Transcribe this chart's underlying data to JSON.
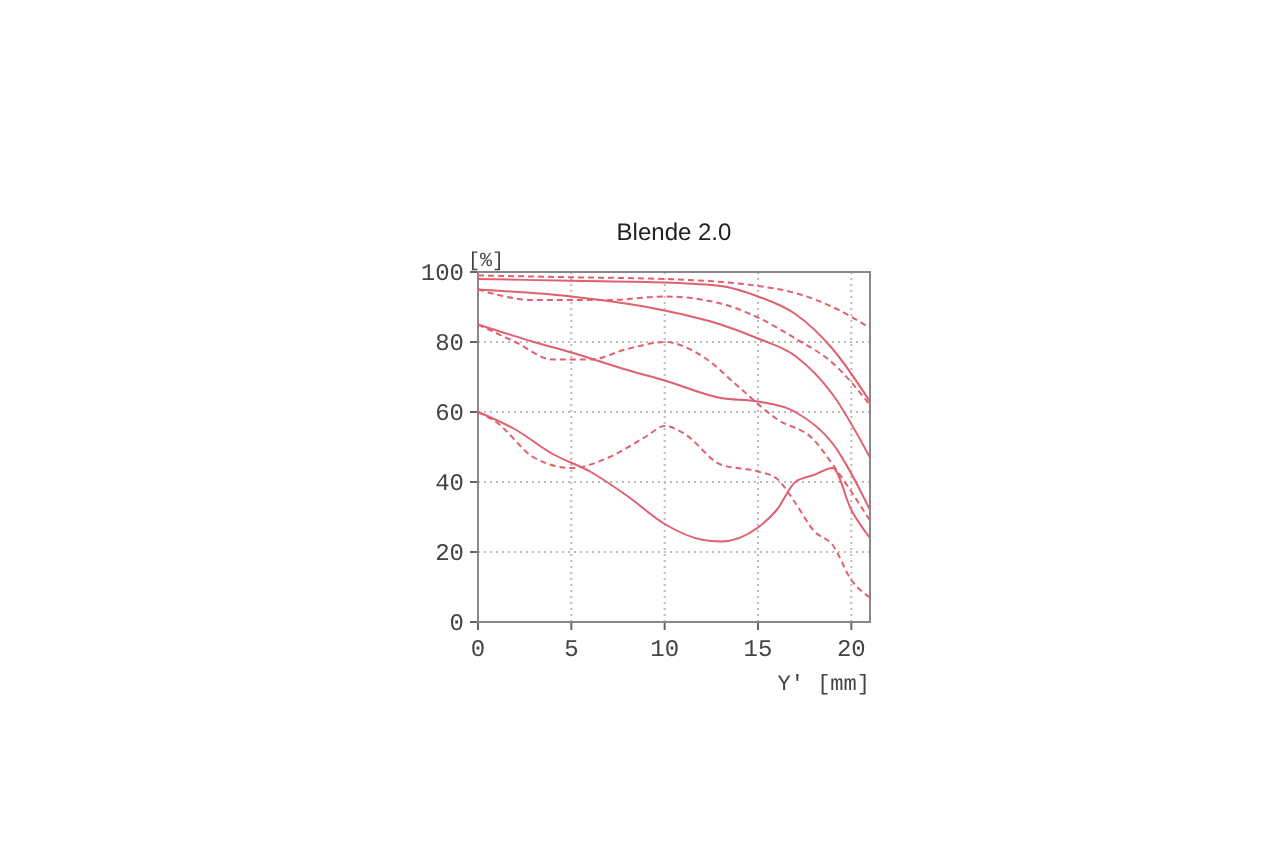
{
  "chart_data": {
    "type": "line",
    "title": "Blende 2.0",
    "xlabel": "Y' [mm]",
    "ylabel": "[%]",
    "xlim": [
      0,
      21
    ],
    "ylim": [
      0,
      100
    ],
    "xticks": [
      0,
      5,
      10,
      15,
      20
    ],
    "yticks": [
      0,
      20,
      40,
      60,
      80,
      100
    ],
    "grid": true,
    "marker": "none",
    "series": [
      {
        "color": "#e06070",
        "line_style": "solid",
        "x": [
          0,
          5,
          10,
          13,
          15,
          17,
          19,
          21
        ],
        "values": [
          98,
          97.5,
          97,
          96,
          93,
          88,
          78,
          63
        ]
      },
      {
        "color": "#e06070",
        "line_style": "dashed",
        "x": [
          0,
          5,
          10,
          15,
          17,
          19,
          21
        ],
        "values": [
          99,
          98.5,
          98,
          96,
          94,
          90,
          84
        ]
      },
      {
        "color": "#e06070",
        "line_style": "solid",
        "x": [
          0,
          5,
          10,
          13,
          15,
          17,
          19,
          21
        ],
        "values": [
          95,
          93,
          89,
          85,
          81,
          76,
          65,
          47
        ]
      },
      {
        "color": "#e06070",
        "line_style": "dashed",
        "x": [
          0,
          3,
          7,
          10,
          13,
          15,
          17,
          19,
          21
        ],
        "values": [
          95,
          92,
          92,
          93,
          91,
          87,
          81,
          74,
          62
        ]
      },
      {
        "color": "#e06070",
        "line_style": "solid",
        "x": [
          0,
          3,
          5,
          8,
          10,
          13,
          15,
          17,
          19,
          21
        ],
        "values": [
          85,
          80,
          77,
          72,
          69,
          64,
          63,
          60,
          51,
          32
        ]
      },
      {
        "color": "#e06070",
        "line_style": "dashed",
        "x": [
          0,
          2,
          4,
          6,
          8,
          10,
          12,
          14,
          16,
          18,
          19,
          21
        ],
        "values": [
          85,
          80,
          75,
          75,
          78,
          80,
          76,
          67,
          58,
          52,
          45,
          29
        ]
      },
      {
        "color": "#e06070",
        "line_style": "solid",
        "x": [
          0,
          2,
          4,
          6,
          8,
          10,
          12,
          13,
          15,
          16,
          17,
          18,
          19,
          20,
          21
        ],
        "values": [
          60,
          55,
          48,
          43,
          36,
          28,
          23.5,
          23,
          27,
          32,
          40,
          42,
          44,
          32,
          24
        ]
      },
      {
        "color": "#e06070",
        "line_style": "dashed",
        "x": [
          0,
          1,
          3,
          5,
          7,
          9,
          10,
          11,
          13,
          15,
          16,
          17,
          18,
          19,
          20,
          21
        ],
        "values": [
          60,
          57,
          47,
          44,
          47,
          53,
          56,
          54,
          45,
          43,
          41,
          34,
          26,
          22,
          12,
          7
        ]
      }
    ]
  }
}
